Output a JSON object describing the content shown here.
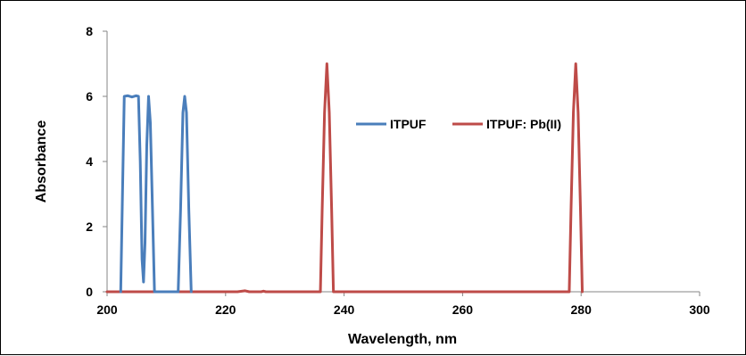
{
  "chart_data": {
    "type": "line",
    "title": "",
    "xlabel": "Wavelength, nm",
    "ylabel": "Absorbance",
    "xlim": [
      200,
      300
    ],
    "ylim": [
      0,
      8
    ],
    "x_ticks": [
      200,
      220,
      240,
      260,
      280,
      300
    ],
    "y_ticks": [
      0,
      2,
      4,
      6,
      8
    ],
    "x_tick_labels": [
      "200",
      "220",
      "240",
      "260",
      "280",
      "300"
    ],
    "y_tick_labels": [
      "0",
      "2",
      "4",
      "6",
      "8"
    ],
    "grid": false,
    "legend_position": "center",
    "series": [
      {
        "name": "ITPUF",
        "color": "#4a7ebb",
        "points": [
          [
            202.3,
            0
          ],
          [
            202.6,
            3.0
          ],
          [
            202.9,
            6.0
          ],
          [
            203.5,
            6.02
          ],
          [
            204.2,
            5.98
          ],
          [
            204.9,
            6.02
          ],
          [
            205.3,
            6.0
          ],
          [
            205.6,
            4.0
          ],
          [
            205.9,
            1.0
          ],
          [
            206.15,
            0.3
          ],
          [
            206.4,
            1.5
          ],
          [
            206.7,
            4.5
          ],
          [
            207.0,
            6.0
          ],
          [
            207.3,
            5.2
          ],
          [
            207.6,
            3.0
          ],
          [
            208.0,
            0
          ],
          [
            212.0,
            0
          ],
          [
            212.4,
            2.5
          ],
          [
            212.8,
            5.5
          ],
          [
            213.1,
            6.0
          ],
          [
            213.4,
            5.5
          ],
          [
            213.8,
            2.5
          ],
          [
            214.2,
            0
          ]
        ]
      },
      {
        "name": "ITPUF: Pb(II)",
        "color": "#be4b48",
        "points": [
          [
            200,
            0
          ],
          [
            210,
            0
          ],
          [
            218,
            0
          ],
          [
            222,
            0
          ],
          [
            223.3,
            0.03
          ],
          [
            224.0,
            0
          ],
          [
            226.0,
            0
          ],
          [
            226.4,
            0.02
          ],
          [
            226.8,
            0
          ],
          [
            236.0,
            0
          ],
          [
            236.3,
            2.5
          ],
          [
            236.7,
            5.5
          ],
          [
            237.1,
            7.0
          ],
          [
            237.5,
            5.5
          ],
          [
            237.9,
            2.5
          ],
          [
            238.2,
            0
          ],
          [
            278.0,
            0
          ],
          [
            278.3,
            2.5
          ],
          [
            278.7,
            5.5
          ],
          [
            279.1,
            7.0
          ],
          [
            279.5,
            5.5
          ],
          [
            279.9,
            2.5
          ],
          [
            280.2,
            0
          ]
        ]
      }
    ]
  }
}
